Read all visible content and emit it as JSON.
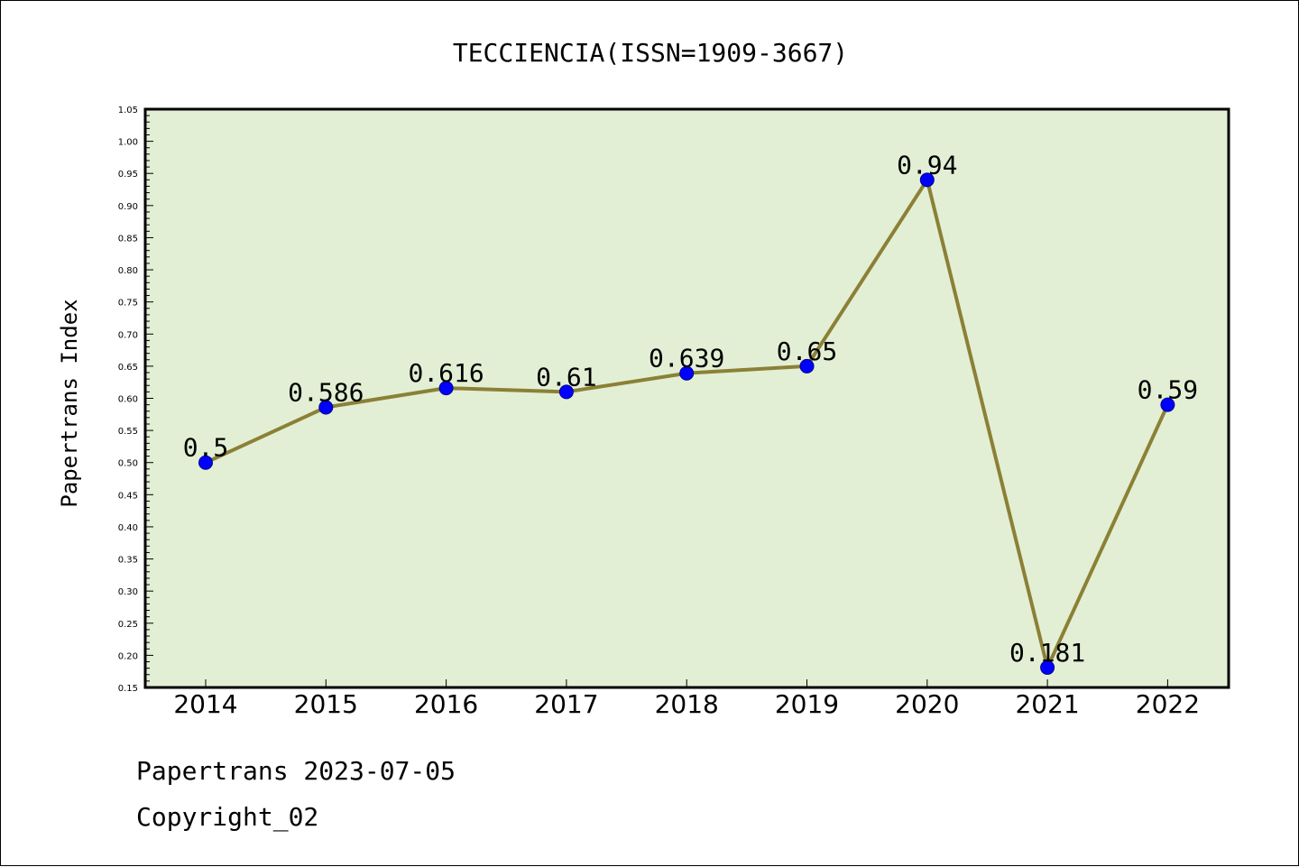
{
  "footer": {
    "line1": "Papertrans 2023-07-05",
    "line2": "Copyright_02"
  },
  "chart_data": {
    "type": "line",
    "title": "TECCIENCIA(ISSN=1909-3667)",
    "xlabel": "",
    "ylabel": "Papertrans Index",
    "x": [
      "2014",
      "2015",
      "2016",
      "2017",
      "2018",
      "2019",
      "2020",
      "2021",
      "2022"
    ],
    "series": [
      {
        "values": [
          0.5,
          0.586,
          0.616,
          0.61,
          0.639,
          0.65,
          0.94,
          0.181,
          0.59
        ],
        "data_labels": [
          "0.5",
          "0.586",
          "0.616",
          "0.61",
          "0.639",
          "0.65",
          "0.94",
          "0.181",
          "0.59"
        ]
      }
    ],
    "ylim": [
      0.15,
      1.05
    ],
    "yticks": [
      "0.15",
      "0.20",
      "0.25",
      "0.30",
      "0.35",
      "0.40",
      "0.45",
      "0.50",
      "0.55",
      "0.60",
      "0.65",
      "0.70",
      "0.75",
      "0.80",
      "0.85",
      "0.90",
      "0.95",
      "1.00",
      "1.05"
    ],
    "grid": false,
    "legend": "none",
    "colors": {
      "plot_background": "#e2efd4",
      "line": "#8b8036",
      "marker_fill": "#0000ff",
      "marker_edge": "#00008b"
    }
  }
}
